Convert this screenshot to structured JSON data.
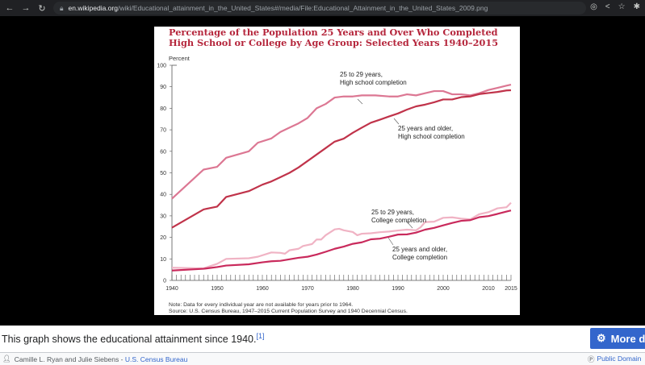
{
  "browser": {
    "url_host": "en.wikipedia.org",
    "url_path": "/wiki/Educational_attainment_in_the_United_States#/media/File:Educational_Attainment_in_the_United_States_2009.png"
  },
  "caption": {
    "text": "This graph shows the educational attainment since 1940.",
    "ref": "[1]",
    "more_button": "More d"
  },
  "footer": {
    "author": "Camille L. Ryan and Julie Siebens - ",
    "author_link": "U.S. Census Bureau",
    "license": "Public Domain"
  },
  "chart_data": {
    "type": "line",
    "title_line1": "Percentage of the Population 25 Years and Over Who Completed",
    "title_line2": "High School or College by Age Group: Selected Years 1940–2015",
    "ylabel": "Percent",
    "ylim": [
      0,
      100
    ],
    "xlim": [
      1940,
      2015
    ],
    "yticks": [
      0,
      10,
      20,
      30,
      40,
      50,
      60,
      70,
      80,
      90,
      100
    ],
    "xticks": [
      1940,
      1950,
      1960,
      1970,
      1980,
      1990,
      2000,
      2010,
      2015
    ],
    "note": "Note: Data for every individual year are not available for years prior to 1964.",
    "source": "Source: U.S. Census Bureau, 1947–2015 Current Population Survey and 1940 Decennial Census.",
    "colors": {
      "title": "#b5263c"
    },
    "series": [
      {
        "name": "25 to 29 years, High school completion",
        "label1": "25 to 29 years,",
        "label2": "High school completion",
        "color": "#dc7793",
        "points": [
          [
            1940,
            38
          ],
          [
            1947,
            51.5
          ],
          [
            1950,
            52.8
          ],
          [
            1952,
            57
          ],
          [
            1957,
            60
          ],
          [
            1959,
            64
          ],
          [
            1962,
            66
          ],
          [
            1964,
            69
          ],
          [
            1966,
            71
          ],
          [
            1968,
            73
          ],
          [
            1970,
            75.5
          ],
          [
            1972,
            80
          ],
          [
            1974,
            82
          ],
          [
            1976,
            85
          ],
          [
            1978,
            85.5
          ],
          [
            1980,
            85.5
          ],
          [
            1982,
            86
          ],
          [
            1985,
            86
          ],
          [
            1988,
            85.5
          ],
          [
            1990,
            85.5
          ],
          [
            1992,
            86.5
          ],
          [
            1994,
            86
          ],
          [
            1996,
            87
          ],
          [
            1998,
            88
          ],
          [
            2000,
            88
          ],
          [
            2002,
            86.5
          ],
          [
            2004,
            86.5
          ],
          [
            2006,
            86
          ],
          [
            2008,
            87
          ],
          [
            2010,
            88.5
          ],
          [
            2012,
            89.5
          ],
          [
            2014,
            90.5
          ],
          [
            2015,
            91
          ]
        ]
      },
      {
        "name": "25 years and older, High school completion",
        "label1": "25 years and older,",
        "label2": "High school completion",
        "color": "#c0334a",
        "points": [
          [
            1940,
            24.5
          ],
          [
            1947,
            33
          ],
          [
            1950,
            34.3
          ],
          [
            1952,
            38.8
          ],
          [
            1957,
            41.5
          ],
          [
            1960,
            44.5
          ],
          [
            1962,
            46
          ],
          [
            1964,
            48
          ],
          [
            1966,
            50
          ],
          [
            1968,
            52.5
          ],
          [
            1970,
            55.5
          ],
          [
            1972,
            58.5
          ],
          [
            1974,
            61.5
          ],
          [
            1976,
            64.5
          ],
          [
            1978,
            65.9
          ],
          [
            1980,
            68.6
          ],
          [
            1982,
            71
          ],
          [
            1984,
            73.3
          ],
          [
            1986,
            74.7
          ],
          [
            1988,
            76.2
          ],
          [
            1990,
            77.6
          ],
          [
            1992,
            79.4
          ],
          [
            1994,
            80.9
          ],
          [
            1996,
            81.7
          ],
          [
            1998,
            82.8
          ],
          [
            2000,
            84.1
          ],
          [
            2002,
            84.1
          ],
          [
            2004,
            85.2
          ],
          [
            2006,
            85.5
          ],
          [
            2008,
            86.6
          ],
          [
            2010,
            87.1
          ],
          [
            2012,
            87.6
          ],
          [
            2014,
            88.3
          ],
          [
            2015,
            88.4
          ]
        ]
      },
      {
        "name": "25 to 29 years, College completion",
        "label1": "25 to 29 years,",
        "label2": "College completion",
        "color": "#f0b3c4",
        "points": [
          [
            1940,
            5.9
          ],
          [
            1947,
            5.6
          ],
          [
            1950,
            7.7
          ],
          [
            1952,
            10
          ],
          [
            1957,
            10.3
          ],
          [
            1959,
            11
          ],
          [
            1962,
            13
          ],
          [
            1964,
            12.8
          ],
          [
            1965,
            12.4
          ],
          [
            1966,
            14
          ],
          [
            1968,
            14.7
          ],
          [
            1969,
            16
          ],
          [
            1971,
            16.9
          ],
          [
            1972,
            19
          ],
          [
            1973,
            19
          ],
          [
            1974,
            21
          ],
          [
            1976,
            23.7
          ],
          [
            1977,
            24
          ],
          [
            1978,
            23.3
          ],
          [
            1980,
            22.5
          ],
          [
            1981,
            21
          ],
          [
            1982,
            21.7
          ],
          [
            1984,
            21.9
          ],
          [
            1986,
            22.4
          ],
          [
            1988,
            22.7
          ],
          [
            1990,
            23.2
          ],
          [
            1992,
            23.6
          ],
          [
            1994,
            23.3
          ],
          [
            1995,
            24.7
          ],
          [
            1996,
            27.1
          ],
          [
            1998,
            27.3
          ],
          [
            2000,
            29.1
          ],
          [
            2002,
            29.3
          ],
          [
            2004,
            28.7
          ],
          [
            2006,
            28.4
          ],
          [
            2008,
            30.8
          ],
          [
            2010,
            31.7
          ],
          [
            2012,
            33.5
          ],
          [
            2014,
            34
          ],
          [
            2015,
            36.1
          ]
        ]
      },
      {
        "name": "25 years and older, College completion",
        "label1": "25 years and older,",
        "label2": "College completion",
        "color": "#c92a5c",
        "points": [
          [
            1940,
            4.6
          ],
          [
            1947,
            5.4
          ],
          [
            1950,
            6.2
          ],
          [
            1952,
            6.9
          ],
          [
            1957,
            7.5
          ],
          [
            1960,
            8.4
          ],
          [
            1962,
            8.9
          ],
          [
            1964,
            9.1
          ],
          [
            1966,
            9.8
          ],
          [
            1968,
            10.5
          ],
          [
            1970,
            11
          ],
          [
            1972,
            12
          ],
          [
            1974,
            13.3
          ],
          [
            1976,
            14.7
          ],
          [
            1978,
            15.7
          ],
          [
            1980,
            17
          ],
          [
            1982,
            17.7
          ],
          [
            1984,
            19.1
          ],
          [
            1986,
            19.4
          ],
          [
            1988,
            20.3
          ],
          [
            1990,
            21.3
          ],
          [
            1992,
            21.4
          ],
          [
            1994,
            22.2
          ],
          [
            1996,
            23.6
          ],
          [
            1998,
            24.4
          ],
          [
            2000,
            25.6
          ],
          [
            2002,
            26.7
          ],
          [
            2004,
            27.7
          ],
          [
            2006,
            28
          ],
          [
            2008,
            29.4
          ],
          [
            2010,
            29.9
          ],
          [
            2012,
            30.9
          ],
          [
            2014,
            32
          ],
          [
            2015,
            32.5
          ]
        ]
      }
    ]
  }
}
